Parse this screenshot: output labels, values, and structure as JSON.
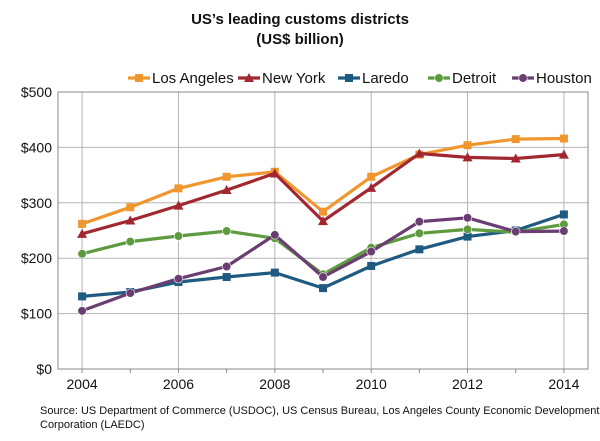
{
  "chart_data": {
    "type": "line",
    "title": "US’s leading customs districts",
    "subtitle": "(US$ billion)",
    "x": [
      2004,
      2005,
      2006,
      2007,
      2008,
      2009,
      2010,
      2011,
      2012,
      2013,
      2014
    ],
    "x_tick_labels": [
      "2004",
      "2006",
      "2008",
      "2010",
      "2012",
      "2014"
    ],
    "ylim": [
      0,
      500
    ],
    "y_ticks": [
      0,
      100,
      200,
      300,
      400,
      500
    ],
    "y_tick_labels": [
      "$0",
      "$100",
      "$200",
      "$300",
      "$400",
      "$500"
    ],
    "grid": true,
    "legend_position": "top",
    "series": [
      {
        "name": "Los Angeles",
        "color": "#F0962E",
        "marker": "square",
        "values": [
          262,
          292,
          326,
          347,
          356,
          284,
          347,
          387,
          404,
          415,
          416
        ]
      },
      {
        "name": "New York",
        "color": "#A12830",
        "marker": "triangle",
        "values": [
          244,
          268,
          295,
          323,
          353,
          267,
          327,
          389,
          382,
          380,
          387
        ]
      },
      {
        "name": "Laredo",
        "color": "#1F5A80",
        "marker": "square",
        "values": [
          131,
          139,
          157,
          166,
          174,
          146,
          186,
          216,
          239,
          250,
          279
        ]
      },
      {
        "name": "Detroit",
        "color": "#5E9A3E",
        "marker": "circle",
        "values": [
          208,
          230,
          240,
          249,
          236,
          171,
          219,
          245,
          252,
          247,
          261
        ]
      },
      {
        "name": "Houston",
        "color": "#6B3E73",
        "marker": "circle",
        "values": [
          105,
          137,
          163,
          185,
          242,
          166,
          212,
          266,
          273,
          248,
          249
        ]
      }
    ],
    "source": "Source: US Department of Commerce (USDOC), US Census Bureau, Los Angeles County Economic Development Corporation (LAEDC)"
  }
}
